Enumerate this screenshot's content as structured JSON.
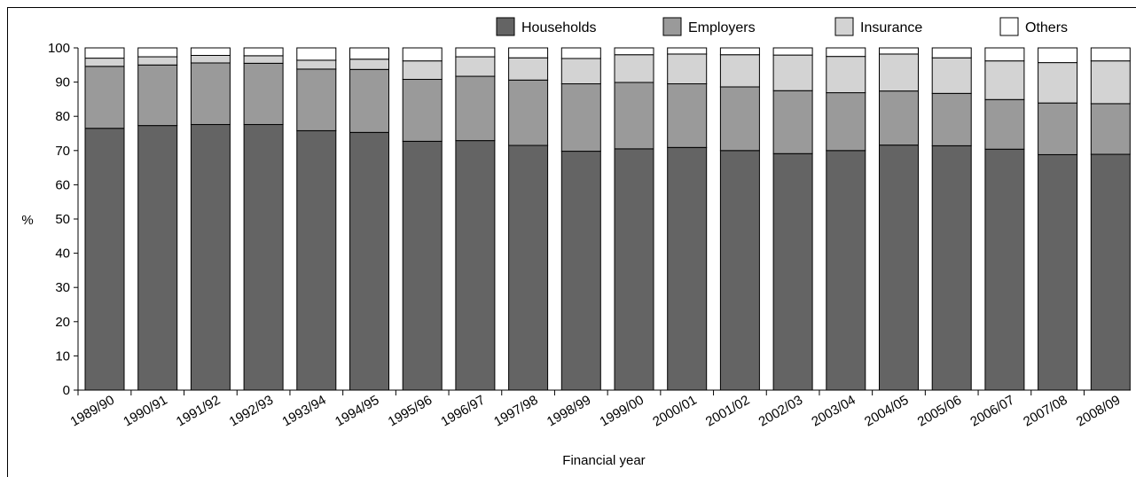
{
  "chart_data": {
    "type": "bar",
    "stacked": true,
    "categories": [
      "1989/90",
      "1990/91",
      "1991/92",
      "1992/93",
      "1993/94",
      "1994/95",
      "1995/96",
      "1996/97",
      "1997/98",
      "1998/99",
      "1999/00",
      "2000/01",
      "2001/02",
      "2002/03",
      "2003/04",
      "2004/05",
      "2005/06",
      "2006/07",
      "2007/08",
      "2008/09"
    ],
    "series": [
      {
        "name": "Households",
        "color": "#646464",
        "values": [
          76.5,
          77.3,
          77.6,
          77.6,
          75.8,
          75.3,
          72.7,
          72.9,
          71.5,
          69.8,
          70.5,
          70.9,
          70.0,
          69.1,
          70.0,
          71.6,
          71.4,
          70.4,
          68.8,
          68.9
        ]
      },
      {
        "name": "Employers",
        "color": "#9a9a9a",
        "values": [
          18.1,
          17.7,
          18.0,
          17.9,
          18.0,
          18.4,
          18.1,
          18.8,
          19.1,
          19.7,
          19.4,
          18.6,
          18.6,
          18.4,
          16.9,
          15.8,
          15.3,
          14.5,
          15.1,
          14.8
        ]
      },
      {
        "name": "Insurance",
        "color": "#d3d3d3",
        "values": [
          2.4,
          2.4,
          2.2,
          2.2,
          2.6,
          3.0,
          5.4,
          5.7,
          6.5,
          7.4,
          8.1,
          8.7,
          9.4,
          10.4,
          10.6,
          10.8,
          10.4,
          11.3,
          11.8,
          12.5
        ]
      },
      {
        "name": "Others",
        "color": "#ffffff",
        "values": [
          3.0,
          2.6,
          2.2,
          2.3,
          3.6,
          3.3,
          3.8,
          2.6,
          2.9,
          3.1,
          2.0,
          1.8,
          2.0,
          2.1,
          2.5,
          1.8,
          2.9,
          3.8,
          4.3,
          3.8
        ]
      }
    ],
    "xlabel": "Financial year",
    "ylabel": "%",
    "ylim": [
      0,
      100
    ],
    "yticks": [
      0,
      10,
      20,
      30,
      40,
      50,
      60,
      70,
      80,
      90,
      100
    ],
    "grid": false,
    "legend_position": "top-right"
  }
}
